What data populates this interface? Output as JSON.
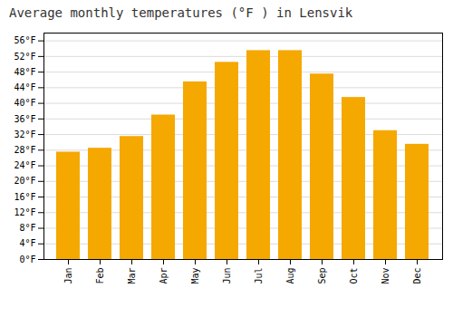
{
  "chart_data": {
    "type": "bar",
    "title": "Average monthly temperatures (°F ) in Lensvik",
    "categories": [
      "Jan",
      "Feb",
      "Mar",
      "Apr",
      "May",
      "Jun",
      "Jul",
      "Aug",
      "Sep",
      "Oct",
      "Nov",
      "Dec"
    ],
    "values": [
      27.5,
      28.5,
      31.5,
      37.0,
      45.5,
      50.5,
      53.5,
      53.5,
      47.5,
      41.5,
      33.0,
      29.5
    ],
    "color": "#F5A800",
    "ylim": [
      0,
      58
    ],
    "yticks": [
      {
        "value": 0,
        "label": "0°F"
      },
      {
        "value": 4,
        "label": "4°F"
      },
      {
        "value": 8,
        "label": "8°F"
      },
      {
        "value": 12,
        "label": "12°F"
      },
      {
        "value": 16,
        "label": "16°F"
      },
      {
        "value": 20,
        "label": "20°F"
      },
      {
        "value": 24,
        "label": "24°F"
      },
      {
        "value": 28,
        "label": "28°F"
      },
      {
        "value": 32,
        "label": "32°F"
      },
      {
        "value": 36,
        "label": "36°F"
      },
      {
        "value": 40,
        "label": "40°F"
      },
      {
        "value": 44,
        "label": "44°F"
      },
      {
        "value": 48,
        "label": "48°F"
      },
      {
        "value": 52,
        "label": "52°F"
      },
      {
        "value": 56,
        "label": "56°F"
      }
    ],
    "grid": true
  }
}
